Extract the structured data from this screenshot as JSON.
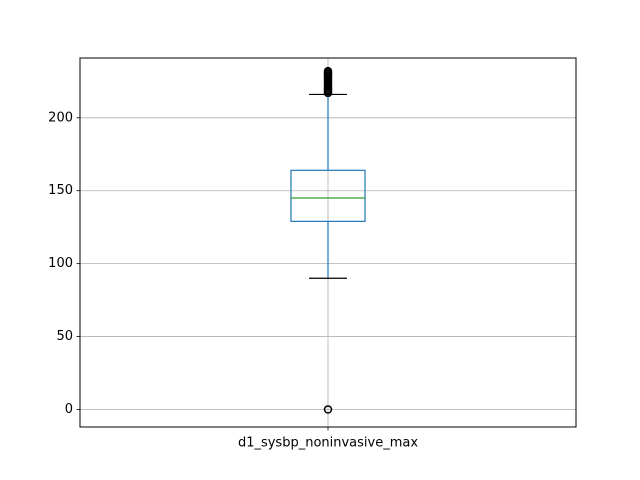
{
  "chart_data": {
    "type": "box",
    "categories": [
      "d1_sysbp_noninvasive_max"
    ],
    "title": "",
    "xlabel": "",
    "ylabel": "",
    "ylim": [
      -12,
      241
    ],
    "y_ticks": [
      0,
      50,
      100,
      150,
      200
    ],
    "grid": true,
    "boxes": [
      {
        "category": "d1_sysbp_noninvasive_max",
        "whisker_low": 90,
        "q1": 129,
        "median": 145,
        "q3": 164,
        "whisker_high": 216,
        "outliers_low": [
          0
        ],
        "outliers_high": [
          217,
          218,
          219,
          220,
          221,
          222,
          223,
          224,
          225,
          226,
          227,
          228,
          229,
          230,
          231,
          232
        ]
      }
    ],
    "colors": {
      "box": "#1f77b4",
      "median": "#2ca02c",
      "whisker_cap": "#000000",
      "grid": "#b0b0b0",
      "axes": "#000000"
    }
  }
}
